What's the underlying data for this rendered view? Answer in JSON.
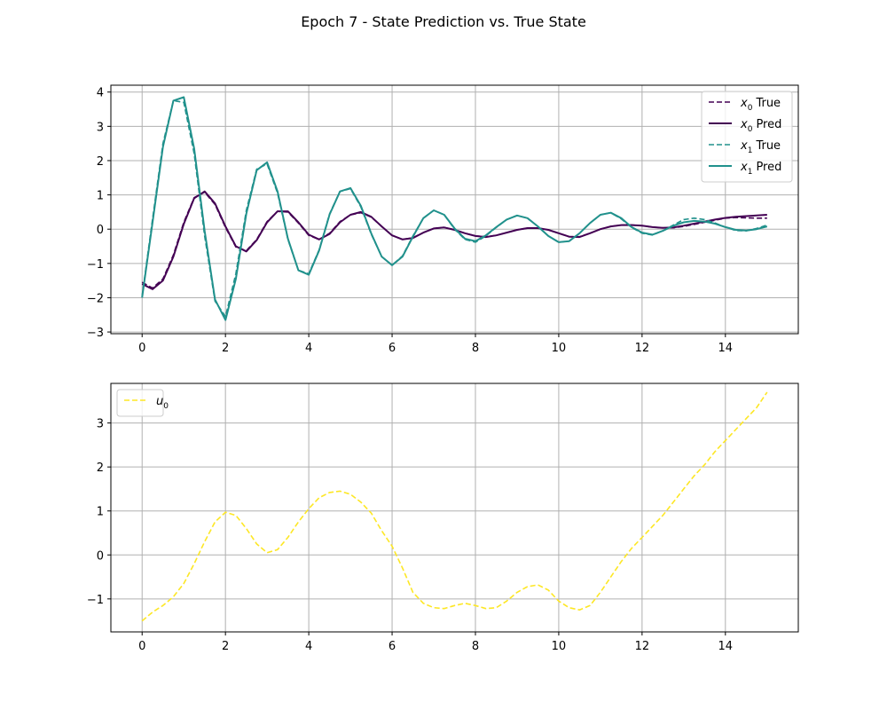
{
  "figure_title": "Epoch 7 - State Prediction vs. True State",
  "chart_data": [
    {
      "type": "line",
      "xlim": [
        -0.75,
        15.75
      ],
      "ylim": [
        -3.05,
        4.2
      ],
      "xticks": [
        0,
        2,
        4,
        6,
        8,
        10,
        12,
        14
      ],
      "yticks": [
        -3,
        -2,
        -1,
        0,
        1,
        2,
        3,
        4
      ],
      "xtick_labels": [
        "0",
        "2",
        "4",
        "6",
        "8",
        "10",
        "12",
        "14"
      ],
      "ytick_labels": [
        "−3",
        "−2",
        "−1",
        "0",
        "1",
        "2",
        "3",
        "4"
      ],
      "grid": true,
      "legend_position": "top-right",
      "x": [
        0,
        0.25,
        0.5,
        0.75,
        1.0,
        1.25,
        1.5,
        1.75,
        2.0,
        2.25,
        2.5,
        2.75,
        3.0,
        3.25,
        3.5,
        3.75,
        4.0,
        4.25,
        4.5,
        4.75,
        5.0,
        5.25,
        5.5,
        5.75,
        6.0,
        6.25,
        6.5,
        6.75,
        7.0,
        7.25,
        7.5,
        7.75,
        8.0,
        8.25,
        8.5,
        8.75,
        9.0,
        9.25,
        9.5,
        9.75,
        10.0,
        10.25,
        10.5,
        10.75,
        11.0,
        11.25,
        11.5,
        11.75,
        12.0,
        12.25,
        12.5,
        12.75,
        13.0,
        13.25,
        13.5,
        13.75,
        14.0,
        14.25,
        14.5,
        14.75,
        15.0
      ],
      "series": [
        {
          "name": "True",
          "legend_symbol": "x",
          "legend_sub": "0",
          "color": "#440154",
          "dashed": true,
          "values": [
            -1.55,
            -1.72,
            -1.45,
            -0.75,
            0.2,
            0.92,
            1.08,
            0.72,
            0.05,
            -0.52,
            -0.63,
            -0.3,
            0.22,
            0.52,
            0.5,
            0.18,
            -0.18,
            -0.3,
            -0.12,
            0.22,
            0.42,
            0.48,
            0.35,
            0.08,
            -0.18,
            -0.3,
            -0.25,
            -0.1,
            0.02,
            0.05,
            -0.02,
            -0.12,
            -0.2,
            -0.22,
            -0.18,
            -0.1,
            -0.02,
            0.03,
            0.03,
            -0.02,
            -0.12,
            -0.22,
            -0.22,
            -0.12,
            0.0,
            0.08,
            0.12,
            0.12,
            0.1,
            0.06,
            0.04,
            0.04,
            0.08,
            0.14,
            0.2,
            0.26,
            0.32,
            0.34,
            0.33,
            0.32,
            0.32
          ]
        },
        {
          "name": "Pred",
          "legend_symbol": "x",
          "legend_sub": "0",
          "color": "#440154",
          "dashed": false,
          "values": [
            -1.6,
            -1.75,
            -1.5,
            -0.8,
            0.15,
            0.9,
            1.1,
            0.75,
            0.08,
            -0.5,
            -0.65,
            -0.32,
            0.2,
            0.52,
            0.52,
            0.2,
            -0.16,
            -0.3,
            -0.14,
            0.2,
            0.42,
            0.5,
            0.36,
            0.08,
            -0.18,
            -0.3,
            -0.26,
            -0.1,
            0.02,
            0.05,
            -0.02,
            -0.12,
            -0.2,
            -0.23,
            -0.18,
            -0.1,
            -0.02,
            0.03,
            0.03,
            -0.02,
            -0.12,
            -0.22,
            -0.23,
            -0.12,
            0.0,
            0.08,
            0.12,
            0.12,
            0.1,
            0.06,
            0.04,
            0.05,
            0.1,
            0.16,
            0.22,
            0.28,
            0.33,
            0.36,
            0.38,
            0.4,
            0.42
          ]
        },
        {
          "name": "True",
          "legend_symbol": "x",
          "legend_sub": "1",
          "color": "#21918c",
          "dashed": true,
          "values": [
            -1.95,
            0.3,
            2.5,
            3.75,
            3.7,
            2.2,
            -0.2,
            -2.1,
            -2.55,
            -1.3,
            0.55,
            1.75,
            1.9,
            1.05,
            -0.3,
            -1.2,
            -1.3,
            -0.6,
            0.45,
            1.1,
            1.18,
            0.65,
            -0.15,
            -0.8,
            -1.05,
            -0.78,
            -0.2,
            0.32,
            0.55,
            0.42,
            0.0,
            -0.3,
            -0.38,
            -0.2,
            0.05,
            0.28,
            0.4,
            0.32,
            0.08,
            -0.2,
            -0.38,
            -0.35,
            -0.12,
            0.18,
            0.42,
            0.48,
            0.3,
            0.05,
            -0.12,
            -0.17,
            -0.05,
            0.12,
            0.28,
            0.32,
            0.28,
            0.18,
            0.06,
            -0.04,
            -0.05,
            0.02,
            0.12
          ]
        },
        {
          "name": "Pred",
          "legend_symbol": "x",
          "legend_sub": "1",
          "color": "#21918c",
          "dashed": false,
          "values": [
            -2.0,
            0.2,
            2.4,
            3.75,
            3.85,
            2.35,
            -0.05,
            -2.05,
            -2.65,
            -1.45,
            0.45,
            1.72,
            1.95,
            1.1,
            -0.28,
            -1.2,
            -1.33,
            -0.62,
            0.43,
            1.1,
            1.2,
            0.68,
            -0.13,
            -0.8,
            -1.05,
            -0.8,
            -0.22,
            0.32,
            0.55,
            0.42,
            0.02,
            -0.28,
            -0.35,
            -0.18,
            0.06,
            0.28,
            0.4,
            0.32,
            0.08,
            -0.2,
            -0.38,
            -0.35,
            -0.12,
            0.18,
            0.42,
            0.48,
            0.32,
            0.06,
            -0.1,
            -0.16,
            -0.05,
            0.1,
            0.2,
            0.24,
            0.22,
            0.16,
            0.06,
            -0.02,
            -0.04,
            0.0,
            0.08
          ]
        }
      ]
    },
    {
      "type": "line",
      "xlim": [
        -0.75,
        15.75
      ],
      "ylim": [
        -1.75,
        3.9
      ],
      "xticks": [
        0,
        2,
        4,
        6,
        8,
        10,
        12,
        14
      ],
      "yticks": [
        -1,
        0,
        1,
        2,
        3
      ],
      "xtick_labels": [
        "0",
        "2",
        "4",
        "6",
        "8",
        "10",
        "12",
        "14"
      ],
      "ytick_labels": [
        "−1",
        "0",
        "1",
        "2",
        "3"
      ],
      "grid": true,
      "legend_position": "top-left",
      "x": [
        0,
        0.25,
        0.5,
        0.75,
        1.0,
        1.25,
        1.5,
        1.75,
        2.0,
        2.25,
        2.5,
        2.75,
        3.0,
        3.25,
        3.5,
        3.75,
        4.0,
        4.25,
        4.5,
        4.75,
        5.0,
        5.25,
        5.5,
        5.75,
        6.0,
        6.25,
        6.5,
        6.75,
        7.0,
        7.25,
        7.5,
        7.75,
        8.0,
        8.25,
        8.5,
        8.75,
        9.0,
        9.25,
        9.5,
        9.75,
        10.0,
        10.25,
        10.5,
        10.75,
        11.0,
        11.25,
        11.5,
        11.75,
        12.0,
        12.25,
        12.5,
        12.75,
        13.0,
        13.25,
        13.5,
        13.75,
        14.0,
        14.25,
        14.5,
        14.75,
        15.0
      ],
      "series": [
        {
          "name": "",
          "legend_symbol": "u",
          "legend_sub": "0",
          "color": "#fde725",
          "dashed": true,
          "values": [
            -1.5,
            -1.3,
            -1.15,
            -0.95,
            -0.65,
            -0.2,
            0.3,
            0.75,
            0.97,
            0.9,
            0.6,
            0.25,
            0.05,
            0.12,
            0.4,
            0.75,
            1.05,
            1.3,
            1.42,
            1.45,
            1.38,
            1.2,
            0.95,
            0.55,
            0.2,
            -0.3,
            -0.85,
            -1.1,
            -1.2,
            -1.22,
            -1.15,
            -1.1,
            -1.15,
            -1.22,
            -1.2,
            -1.05,
            -0.85,
            -0.72,
            -0.68,
            -0.8,
            -1.05,
            -1.2,
            -1.25,
            -1.15,
            -0.85,
            -0.5,
            -0.15,
            0.15,
            0.4,
            0.65,
            0.9,
            1.2,
            1.5,
            1.8,
            2.05,
            2.35,
            2.6,
            2.85,
            3.1,
            3.35,
            3.7
          ]
        }
      ]
    }
  ]
}
